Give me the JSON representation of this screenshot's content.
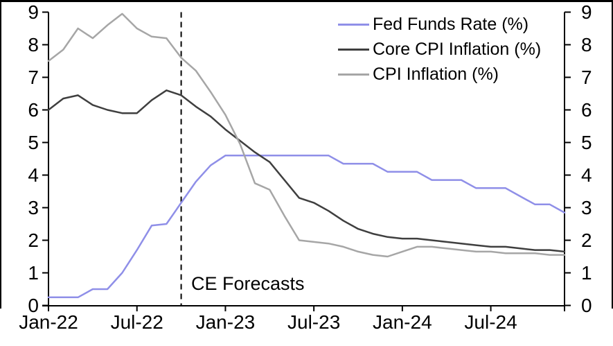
{
  "chart_data": {
    "type": "line",
    "title": "",
    "x_start": "Jan-22",
    "x_end": "Dec-24",
    "x_unit": "month",
    "points_per_series": 36,
    "x_tick_labels": [
      "Jan-22",
      "Jul-22",
      "Jan-23",
      "Jul-23",
      "Jan-24",
      "Jul-24"
    ],
    "x_tick_month_indices": [
      0,
      6,
      12,
      18,
      24,
      30
    ],
    "ylim": [
      0,
      9
    ],
    "y_ticks": [
      0,
      1,
      2,
      3,
      4,
      5,
      6,
      7,
      8,
      9
    ],
    "y_axis": "dual-identical-left-right",
    "grid": false,
    "legend_position": "top-right-inside",
    "annotation": {
      "label": "CE Forecasts",
      "month_index": 9,
      "style": "vertical-dashed-line"
    },
    "frame_color": "#000000",
    "series": [
      {
        "name": "Fed Funds Rate (%)",
        "color": "#8f8fe8",
        "values": [
          0.25,
          0.25,
          0.25,
          0.5,
          0.5,
          1.0,
          1.7,
          2.45,
          2.5,
          3.15,
          3.8,
          4.3,
          4.6,
          4.6,
          4.6,
          4.6,
          4.6,
          4.6,
          4.6,
          4.6,
          4.35,
          4.35,
          4.35,
          4.1,
          4.1,
          4.1,
          3.85,
          3.85,
          3.85,
          3.6,
          3.6,
          3.6,
          3.35,
          3.1,
          3.1,
          2.85
        ]
      },
      {
        "name": "Core CPI Inflation (%)",
        "color": "#3f3f3f",
        "values": [
          6.0,
          6.35,
          6.45,
          6.15,
          6.0,
          5.9,
          5.9,
          6.3,
          6.6,
          6.45,
          6.1,
          5.8,
          5.4,
          5.05,
          4.7,
          4.4,
          3.85,
          3.3,
          3.15,
          2.9,
          2.6,
          2.35,
          2.2,
          2.1,
          2.05,
          2.05,
          2.0,
          1.95,
          1.9,
          1.85,
          1.8,
          1.8,
          1.75,
          1.7,
          1.7,
          1.65
        ]
      },
      {
        "name": "CPI Inflation (%)",
        "color": "#a6a6a6",
        "values": [
          7.5,
          7.85,
          8.5,
          8.2,
          8.6,
          8.95,
          8.5,
          8.25,
          8.2,
          7.6,
          7.2,
          6.55,
          5.85,
          4.95,
          3.75,
          3.55,
          2.75,
          2.0,
          1.95,
          1.9,
          1.8,
          1.65,
          1.55,
          1.5,
          1.65,
          1.8,
          1.8,
          1.75,
          1.7,
          1.65,
          1.65,
          1.6,
          1.6,
          1.6,
          1.55,
          1.55
        ]
      }
    ]
  }
}
